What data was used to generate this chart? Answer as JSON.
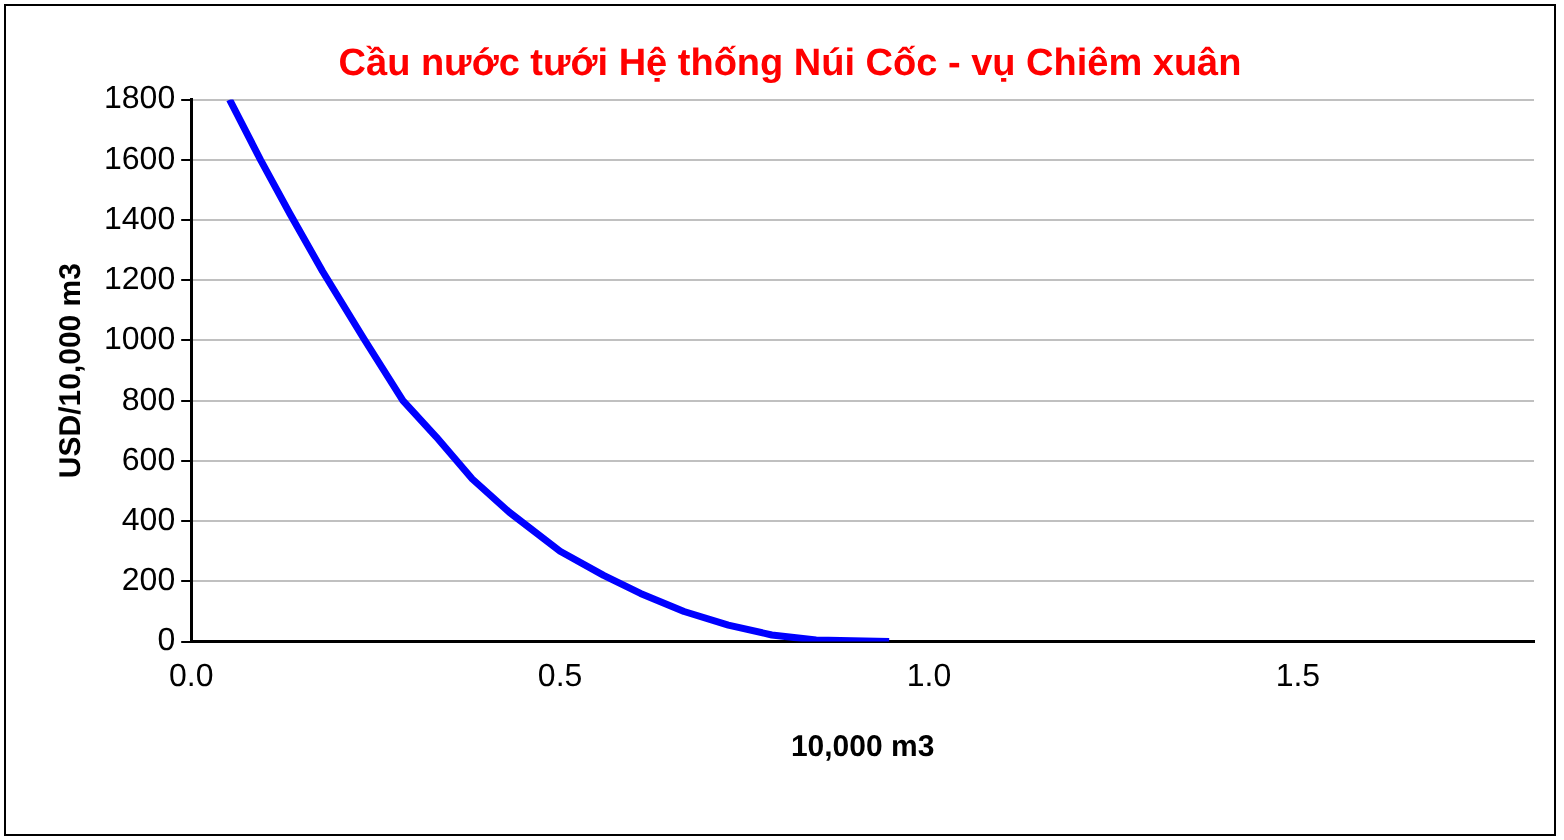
{
  "chart_data": {
    "type": "line",
    "title": "Cầu nước tưới Hệ thống Núi Cốc - vụ Chiêm xuân",
    "xlabel": "10,000 m3",
    "ylabel": "USD/10,000 m3",
    "series": [
      {
        "color": "#0000ff",
        "x": [
          0.052,
          0.094,
          0.134,
          0.178,
          0.233,
          0.287,
          0.332,
          0.381,
          0.431,
          0.5,
          0.559,
          0.609,
          0.668,
          0.728,
          0.787,
          0.847,
          0.946
        ],
        "values": [
          1800,
          1600,
          1420,
          1230,
          1010,
          800,
          680,
          540,
          430,
          300,
          220,
          160,
          100,
          55,
          22,
          5,
          0
        ]
      }
    ],
    "xlim": [
      0,
      1.82
    ],
    "xticks": [
      {
        "value": 0,
        "label": "0.0"
      },
      {
        "value": 0.5,
        "label": "0.5"
      },
      {
        "value": 1,
        "label": "1.0"
      },
      {
        "value": 1.5,
        "label": "1.5"
      }
    ],
    "ylim": [
      0,
      1800
    ],
    "yticks": [
      0,
      200,
      400,
      600,
      800,
      1000,
      1200,
      1400,
      1600,
      1800
    ],
    "grid": "y",
    "legend": false,
    "marker": "none",
    "line_style": "solid"
  }
}
